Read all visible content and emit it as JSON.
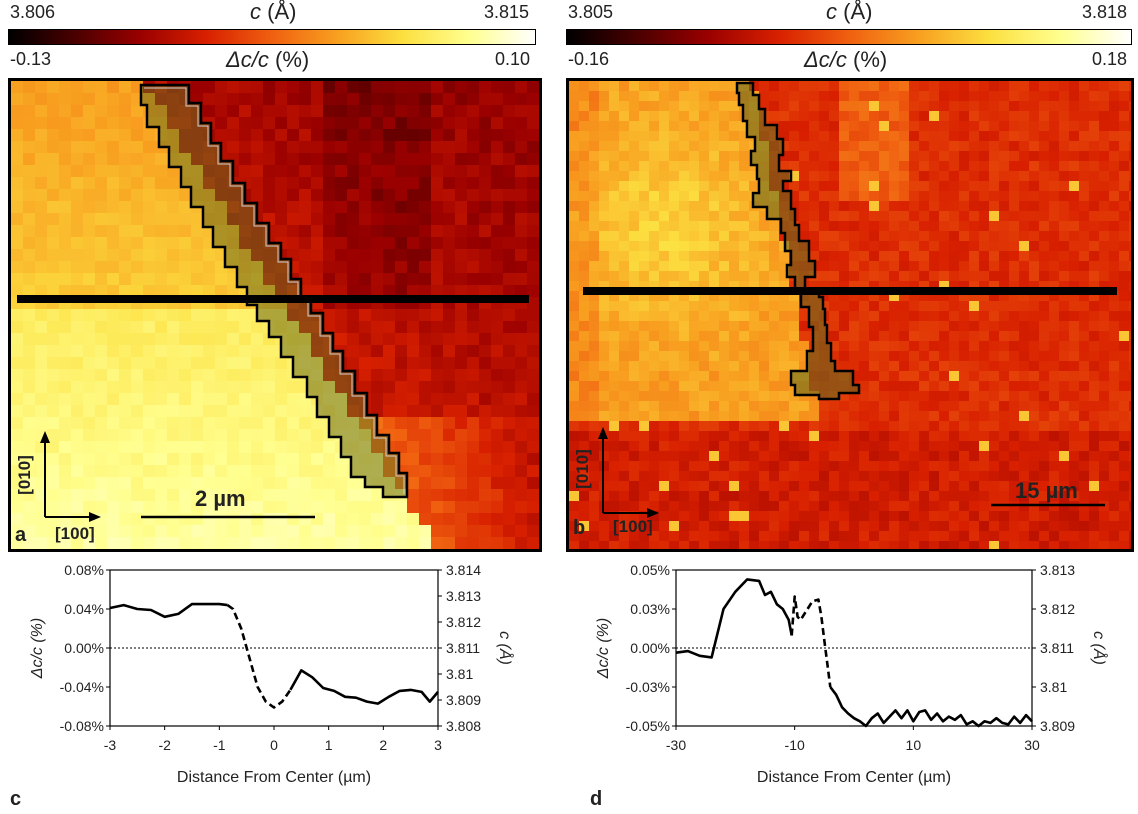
{
  "colorbars": [
    {
      "title_var": "c",
      "title_unit": " (Å)",
      "c_min": "3.806",
      "c_max": "3.815",
      "d_min": "-0.13",
      "d_max": "0.10",
      "delta_label_var": "Δc/c",
      "delta_label_unit": " (%)"
    },
    {
      "title_var": "c",
      "title_unit": " (Å)",
      "c_min": "3.805",
      "c_max": "3.818",
      "d_min": "-0.16",
      "d_max": "0.18",
      "delta_label_var": "Δc/c",
      "delta_label_unit": " (%)"
    }
  ],
  "maps": [
    {
      "letter": "a",
      "axis_vertical": "[010]",
      "axis_horizontal": "[100]",
      "scale_bar": "2 µm"
    },
    {
      "letter": "b",
      "axis_vertical": "[010]",
      "axis_horizontal": "[100]",
      "scale_bar": "15 µm"
    }
  ],
  "colors": {
    "colormap": [
      "#000000",
      "#4a0000",
      "#9a0000",
      "#d82000",
      "#f06010",
      "#f8a020",
      "#fce040",
      "#ffff90",
      "#ffffff"
    ],
    "line": "#000000",
    "grain_overlay": "#6b6b1e"
  },
  "chart_data": [
    {
      "type": "line",
      "panel_letter": "c",
      "xlabel": "Distance From Center (µm)",
      "ylabel_left": "Δc/c  (%)",
      "ylabel_right": "c (Å)",
      "xlim": [
        -3,
        3
      ],
      "xticks": [
        "-3",
        "-2",
        "-1",
        "0",
        "1",
        "2",
        "3"
      ],
      "ylim_left": [
        -0.08,
        0.08
      ],
      "yticks_left": [
        "0.08%",
        "0.04%",
        "0.00%",
        "-0.04%",
        "-0.08%"
      ],
      "ylim_right": [
        3.808,
        3.814
      ],
      "yticks_right": [
        "3.814",
        "3.813",
        "3.812",
        "3.811",
        "3.81",
        "3.809",
        "3.808"
      ],
      "reference_line_y": 0,
      "series": [
        {
          "style": "solid",
          "x": [
            -3.0,
            -2.75,
            -2.5,
            -2.25,
            -2.0,
            -1.75,
            -1.5,
            -1.25,
            -1.0,
            -0.85
          ],
          "y": [
            0.041,
            0.044,
            0.04,
            0.039,
            0.032,
            0.035,
            0.045,
            0.045,
            0.045,
            0.044
          ]
        },
        {
          "style": "dashed",
          "x": [
            -0.85,
            -0.75,
            -0.6,
            -0.45,
            -0.3,
            -0.15,
            0.0,
            0.15,
            0.3
          ],
          "y": [
            0.044,
            0.04,
            0.02,
            -0.01,
            -0.04,
            -0.055,
            -0.061,
            -0.055,
            -0.043
          ]
        },
        {
          "style": "solid",
          "x": [
            0.3,
            0.5,
            0.7,
            0.9,
            1.1,
            1.3,
            1.5,
            1.7,
            1.9,
            2.1,
            2.3,
            2.5,
            2.7,
            2.85,
            3.0
          ],
          "y": [
            -0.043,
            -0.023,
            -0.03,
            -0.041,
            -0.044,
            -0.05,
            -0.051,
            -0.055,
            -0.057,
            -0.05,
            -0.044,
            -0.043,
            -0.045,
            -0.055,
            -0.045
          ]
        }
      ]
    },
    {
      "type": "line",
      "panel_letter": "d",
      "xlabel": "Distance From Center (µm)",
      "ylabel_left": "Δc/c  (%)",
      "ylabel_right": "c (Å)",
      "xlim": [
        -30,
        30
      ],
      "xticks": [
        "-30",
        "-10",
        "10",
        "30"
      ],
      "ylim_left": [
        -0.05,
        0.05
      ],
      "yticks_left": [
        "0.05%",
        "0.03%",
        "0.00%",
        "-0.03%",
        "-0.05%"
      ],
      "ylim_right": [
        3.809,
        3.813
      ],
      "yticks_right": [
        "3.813",
        "3.812",
        "3.811",
        "3.81",
        "3.809"
      ],
      "reference_line_y": 0,
      "series": [
        {
          "style": "solid",
          "x": [
            -30,
            -28,
            -26,
            -24,
            -22,
            -20,
            -18,
            -16,
            -15,
            -14,
            -13,
            -12,
            -11,
            -10.5
          ],
          "y": [
            -0.003,
            -0.002,
            -0.005,
            -0.006,
            0.025,
            0.036,
            0.044,
            0.043,
            0.034,
            0.036,
            0.028,
            0.025,
            0.018,
            0.008
          ]
        },
        {
          "style": "dashed",
          "x": [
            -10.5,
            -10,
            -9.5,
            -9,
            -8,
            -7,
            -6,
            -5.5,
            -5,
            -4.5,
            -4
          ],
          "y": [
            0.008,
            0.033,
            0.02,
            0.018,
            0.024,
            0.03,
            0.031,
            0.02,
            0.005,
            -0.01,
            -0.025
          ]
        },
        {
          "style": "solid",
          "x": [
            -4,
            -3,
            -2,
            -1,
            0,
            1,
            2,
            3,
            4,
            5,
            6,
            7,
            8,
            9,
            10,
            11,
            12,
            13,
            14,
            15,
            16,
            17,
            18,
            19,
            20,
            21,
            22,
            23,
            24,
            25,
            26,
            27,
            28,
            29,
            30
          ],
          "y": [
            -0.025,
            -0.03,
            -0.038,
            -0.042,
            -0.045,
            -0.047,
            -0.05,
            -0.045,
            -0.042,
            -0.048,
            -0.044,
            -0.04,
            -0.045,
            -0.04,
            -0.047,
            -0.041,
            -0.04,
            -0.046,
            -0.042,
            -0.047,
            -0.044,
            -0.046,
            -0.043,
            -0.049,
            -0.047,
            -0.05,
            -0.047,
            -0.048,
            -0.045,
            -0.048,
            -0.049,
            -0.044,
            -0.048,
            -0.043,
            -0.047
          ]
        }
      ]
    }
  ]
}
